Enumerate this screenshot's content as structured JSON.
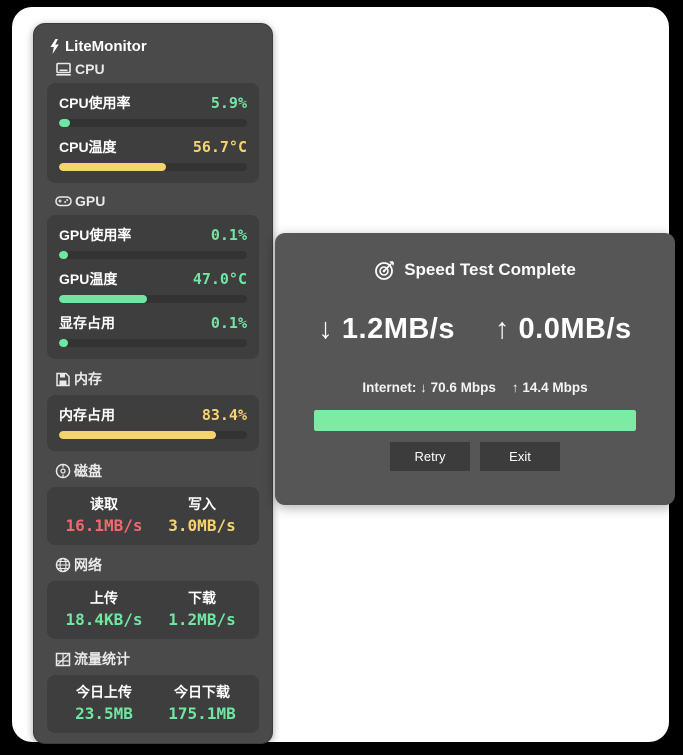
{
  "monitor": {
    "title": "LiteMonitor",
    "cpu": {
      "header": "CPU",
      "usage": {
        "label": "CPU使用率",
        "value": "5.9%",
        "percent": 5.9,
        "color": "green"
      },
      "temp": {
        "label": "CPU温度",
        "value": "56.7°C",
        "percent": 56.7,
        "color": "yellow"
      }
    },
    "gpu": {
      "header": "GPU",
      "usage": {
        "label": "GPU使用率",
        "value": "0.1%",
        "percent": 0.1,
        "color": "green"
      },
      "temp": {
        "label": "GPU温度",
        "value": "47.0°C",
        "percent": 47.0,
        "color": "green"
      },
      "vram": {
        "label": "显存占用",
        "value": "0.1%",
        "percent": 0.1,
        "color": "green"
      }
    },
    "memory": {
      "header": "内存",
      "usage": {
        "label": "内存占用",
        "value": "83.4%",
        "percent": 83.4,
        "color": "yellow"
      }
    },
    "disk": {
      "header": "磁盘",
      "read": {
        "label": "读取",
        "value": "16.1MB/s",
        "color": "red"
      },
      "write": {
        "label": "写入",
        "value": "3.0MB/s",
        "color": "yellow"
      }
    },
    "network": {
      "header": "网络",
      "upload": {
        "label": "上传",
        "value": "18.4KB/s",
        "color": "green"
      },
      "download": {
        "label": "下载",
        "value": "1.2MB/s",
        "color": "green"
      }
    },
    "traffic": {
      "header": "流量统计",
      "upload": {
        "label": "今日上传",
        "value": "23.5MB",
        "color": "green"
      },
      "download": {
        "label": "今日下载",
        "value": "175.1MB",
        "color": "green"
      }
    }
  },
  "dialog": {
    "title": "Speed Test Complete",
    "download_speed": "↓ 1.2MB/s",
    "upload_speed": "↑ 0.0MB/s",
    "internet_down": "Internet: ↓ 70.6 Mbps",
    "internet_up": "↑ 14.4 Mbps",
    "progress_percent": 100,
    "buttons": {
      "retry": "Retry",
      "exit": "Exit"
    }
  },
  "icons": {
    "panel_title": "lightning-icon",
    "cpu": "computer-icon",
    "gpu": "gamepad-icon",
    "memory": "floppy-disk-icon",
    "disk": "disc-icon",
    "network": "globe-icon",
    "traffic": "chart-grid-icon",
    "dialog_title": "dart-target-icon"
  },
  "colors": {
    "green": "#6fe7a2",
    "yellow": "#f5d470",
    "red": "#f0696f",
    "panel_bg": "#4a4a4a",
    "card_bg": "#3e3e3e",
    "bar_track": "#333333",
    "dialog_bg": "#565656",
    "dialog_progress": "#7deba3",
    "button_bg": "#3c3c3c"
  }
}
